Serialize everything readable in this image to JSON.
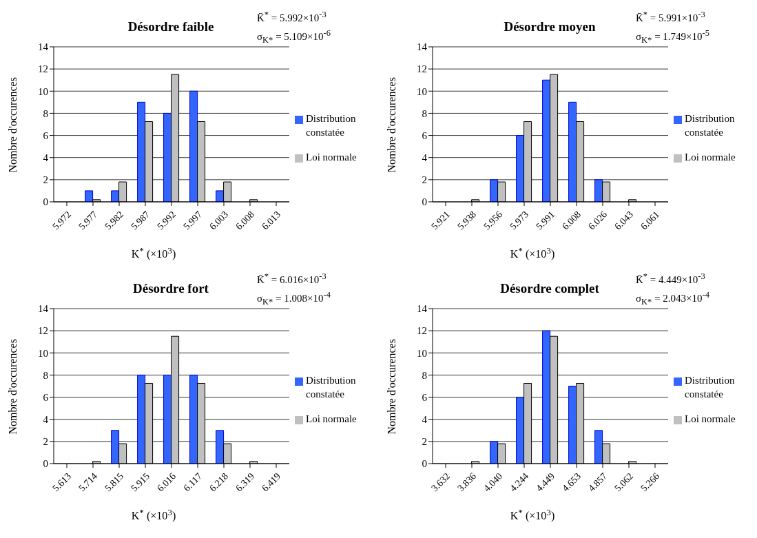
{
  "chart_data": [
    {
      "type": "bar",
      "title": "Désordre faible",
      "annotations": [
        "K̄$^{*}$ = 5.992×10$^{-3}$",
        "σ$_{K*}$ = 5.109×10$^{-6}$"
      ],
      "xlabel": "K$^{*}$ (×10$^{3}$)",
      "ylabel": "Nombre d'occurences",
      "categories": [
        "5.972",
        "5.977",
        "5.982",
        "5.987",
        "5.992",
        "5.997",
        "6.003",
        "6.008",
        "6.013"
      ],
      "series": [
        {
          "name": "Distribution constatée",
          "color": "#3366ff",
          "values": [
            0,
            1,
            1,
            9,
            8,
            10,
            1,
            0,
            0
          ]
        },
        {
          "name": "Loi normale",
          "color": "#c0c0c0",
          "values": [
            0,
            0.2,
            1.8,
            7.25,
            11.5,
            7.25,
            1.8,
            0.2,
            0
          ]
        }
      ],
      "ylim": [
        0,
        14
      ],
      "yticks": [
        0,
        2,
        4,
        6,
        8,
        10,
        12,
        14
      ],
      "grid": "y",
      "legend": "right"
    },
    {
      "type": "bar",
      "title": "Désordre moyen",
      "annotations": [
        "K̄$^{*}$ = 5.991×10$^{-3}$",
        "σ$_{K*}$ = 1.749×10$^{-5}$"
      ],
      "xlabel": "K$^{*}$ (×10$^{3}$)",
      "ylabel": "Nombre d'occurences",
      "categories": [
        "5.921",
        "5.938",
        "5.956",
        "5.973",
        "5.991",
        "6.008",
        "6.026",
        "6.043",
        "6.061"
      ],
      "series": [
        {
          "name": "Distribution constatée",
          "color": "#3366ff",
          "values": [
            0,
            0,
            2,
            6,
            11,
            9,
            2,
            0,
            0
          ]
        },
        {
          "name": "Loi normale",
          "color": "#c0c0c0",
          "values": [
            0,
            0.2,
            1.8,
            7.25,
            11.5,
            7.25,
            1.8,
            0.2,
            0
          ]
        }
      ],
      "ylim": [
        0,
        14
      ],
      "yticks": [
        0,
        2,
        4,
        6,
        8,
        10,
        12,
        14
      ],
      "grid": "y",
      "legend": "right"
    },
    {
      "type": "bar",
      "title": "Désordre fort",
      "annotations": [
        "K̄$^{*}$ = 6.016×10$^{-3}$",
        "σ$_{K*}$ = 1.008×10$^{-4}$"
      ],
      "xlabel": "K$^{*}$ (×10$^{3}$)",
      "ylabel": "Nombre d'occurences",
      "categories": [
        "5.613",
        "5.714",
        "5.815",
        "5.915",
        "6.016",
        "6.117",
        "6.218",
        "6.319",
        "6.419"
      ],
      "series": [
        {
          "name": "Distribution constatée",
          "color": "#3366ff",
          "values": [
            0,
            0,
            3,
            8,
            8,
            8,
            3,
            0,
            0
          ]
        },
        {
          "name": "Loi normale",
          "color": "#c0c0c0",
          "values": [
            0,
            0.2,
            1.8,
            7.25,
            11.5,
            7.25,
            1.8,
            0.2,
            0
          ]
        }
      ],
      "ylim": [
        0,
        14
      ],
      "yticks": [
        0,
        2,
        4,
        6,
        8,
        10,
        12,
        14
      ],
      "grid": "y",
      "legend": "right"
    },
    {
      "type": "bar",
      "title": "Désordre complet",
      "annotations": [
        "K̄$^{*}$ = 4.449×10$^{-3}$",
        "σ$_{K*}$ = 2.043×10$^{-4}$"
      ],
      "xlabel": "K$^{*}$ (×10$^{3}$)",
      "ylabel": "Nombre d'occurences",
      "categories": [
        "3.632",
        "3.836",
        "4.040",
        "4.244",
        "4.449",
        "4.653",
        "4.857",
        "5.062",
        "5.266"
      ],
      "series": [
        {
          "name": "Distribution constatée",
          "color": "#3366ff",
          "values": [
            0,
            0,
            2,
            6,
            12,
            7,
            3,
            0,
            0
          ]
        },
        {
          "name": "Loi normale",
          "color": "#c0c0c0",
          "values": [
            0,
            0.2,
            1.8,
            7.25,
            11.5,
            7.25,
            1.8,
            0.2,
            0
          ]
        }
      ],
      "ylim": [
        0,
        14
      ],
      "yticks": [
        0,
        2,
        4,
        6,
        8,
        10,
        12,
        14
      ],
      "grid": "y",
      "legend": "right"
    }
  ]
}
